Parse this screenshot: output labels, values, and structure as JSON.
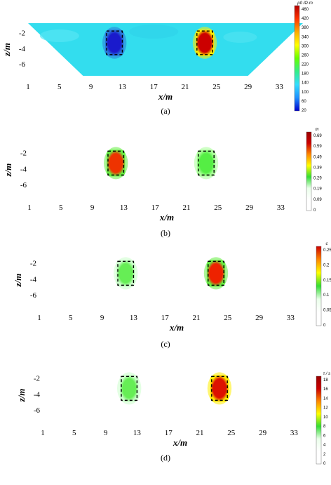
{
  "chart_data": [
    {
      "type": "heatmap",
      "caption": "(a)",
      "xlabel": "x/m",
      "ylabel": "z/m",
      "xticks": [
        "1",
        "5",
        "9",
        "13",
        "17",
        "21",
        "25",
        "29",
        "33"
      ],
      "xtick_values": [
        1,
        5,
        9,
        13,
        17,
        21,
        25,
        29,
        33
      ],
      "xlim": [
        1,
        36
      ],
      "yticks": [
        "-2",
        "-4",
        "-6"
      ],
      "ytick_values": [
        -2,
        -4,
        -6
      ],
      "ylim": [
        -7.5,
        -0.8
      ],
      "domain": "trapezoid",
      "colorbar": {
        "title": "ρ0 /Ω·m",
        "ticks": [
          "460",
          "420",
          "380",
          "340",
          "300",
          "260",
          "220",
          "180",
          "140",
          "100",
          "60",
          "20"
        ],
        "colors": [
          "#0000cc",
          "#1e90ff",
          "#33ddff",
          "#33ee88",
          "#66ff00",
          "#ffff00",
          "#ffaa00",
          "#ff3300",
          "#b30000"
        ]
      },
      "background_color": "#33ddee",
      "anomalies": [
        {
          "x": [
            11,
            13
          ],
          "z": [
            -1.8,
            -4.8
          ],
          "color": "#1a1acc",
          "halo": "#2a7ad9"
        },
        {
          "x": [
            22.5,
            24.5
          ],
          "z": [
            -1.8,
            -4.8
          ],
          "color": "#cc0000",
          "halo": "#ffee00"
        }
      ]
    },
    {
      "type": "heatmap",
      "caption": "(b)",
      "xlabel": "x/m",
      "ylabel": "z/m",
      "xticks": [
        "1",
        "5",
        "9",
        "13",
        "17",
        "21",
        "25",
        "29",
        "33"
      ],
      "xtick_values": [
        1,
        5,
        9,
        13,
        17,
        21,
        25,
        29,
        33
      ],
      "xlim": [
        1,
        36
      ],
      "yticks": [
        "-2",
        "-4",
        "-6"
      ],
      "ytick_values": [
        -2,
        -4,
        -6
      ],
      "ylim": [
        -7.5,
        -0.8
      ],
      "domain": "rectangle",
      "colorbar": {
        "title": "m",
        "ticks": [
          "0.69",
          "0.59",
          "0.49",
          "0.39",
          "0.29",
          "0.19",
          "0.09",
          "0"
        ],
        "colors": [
          "#ffffff",
          "#ffffff",
          "#eaffea",
          "#33dd33",
          "#ffff00",
          "#ff8800",
          "#cc0000",
          "#990000"
        ]
      },
      "background_color": "#ffffff",
      "anomalies": [
        {
          "x": [
            11,
            13
          ],
          "z": [
            -1.8,
            -4.8
          ],
          "color": "#ee3300",
          "halo": "#66ee44"
        },
        {
          "x": [
            22.5,
            24.5
          ],
          "z": [
            -1.8,
            -4.8
          ],
          "color": "#55ee44",
          "halo": "#aaff99"
        }
      ]
    },
    {
      "type": "heatmap",
      "caption": "(c)",
      "xlabel": "x/m",
      "ylabel": "z/m",
      "xticks": [
        "1",
        "5",
        "9",
        "13",
        "17",
        "21",
        "25",
        "29",
        "33"
      ],
      "xtick_values": [
        1,
        5,
        9,
        13,
        17,
        21,
        25,
        29,
        33
      ],
      "xlim": [
        1,
        36
      ],
      "yticks": [
        "-2",
        "-4",
        "-6"
      ],
      "ytick_values": [
        -2,
        -4,
        -6
      ],
      "ylim": [
        -7.5,
        -0.8
      ],
      "domain": "rectangle",
      "colorbar": {
        "title": "c",
        "ticks": [
          "0.25",
          "0.2",
          "0.15",
          "0.1",
          "0.05",
          "0"
        ],
        "colors": [
          "#ffffff",
          "#ffffff",
          "#eaffea",
          "#33dd33",
          "#ffff00",
          "#ff8800",
          "#cc0000"
        ]
      },
      "background_color": "#ffffff",
      "anomalies": [
        {
          "x": [
            11,
            13
          ],
          "z": [
            -1.8,
            -4.8
          ],
          "color": "#66ee55",
          "halo": "#ccffcc"
        },
        {
          "x": [
            22.5,
            24.5
          ],
          "z": [
            -1.8,
            -4.8
          ],
          "color": "#ee2200",
          "halo": "#66ee44"
        }
      ]
    },
    {
      "type": "heatmap",
      "caption": "(d)",
      "xlabel": "x/m",
      "ylabel": "z/m",
      "xticks": [
        "1",
        "5",
        "9",
        "13",
        "17",
        "21",
        "25",
        "29",
        "33"
      ],
      "xtick_values": [
        1,
        5,
        9,
        13,
        17,
        21,
        25,
        29,
        33
      ],
      "xlim": [
        1,
        36
      ],
      "yticks": [
        "-2",
        "-4",
        "-6"
      ],
      "ytick_values": [
        -2,
        -4,
        -6
      ],
      "ylim": [
        -7.5,
        -0.8
      ],
      "domain": "rectangle",
      "colorbar": {
        "title": "τ / s",
        "ticks": [
          "18",
          "16",
          "14",
          "12",
          "10",
          "8",
          "6",
          "4",
          "2",
          "0"
        ],
        "colors": [
          "#ffffff",
          "#ffffff",
          "#eaffea",
          "#33dd33",
          "#ffff00",
          "#ff8800",
          "#cc0000",
          "#990000"
        ]
      },
      "background_color": "#ffffff",
      "anomalies": [
        {
          "x": [
            11,
            13
          ],
          "z": [
            -1.8,
            -4.8
          ],
          "color": "#66ee55",
          "halo": "#ccffcc"
        },
        {
          "x": [
            22.5,
            24.5
          ],
          "z": [
            -1.8,
            -4.8
          ],
          "color": "#dd1100",
          "halo": "#ffee00"
        }
      ]
    }
  ]
}
